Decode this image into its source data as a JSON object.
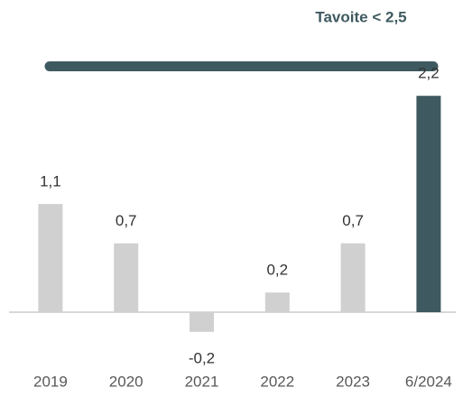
{
  "chart_data": {
    "type": "bar",
    "target": {
      "label": "Tavoite  < 2,5",
      "value": 2.5,
      "color": "#3e5a60"
    },
    "categories": [
      "2019",
      "2020",
      "2021",
      "2022",
      "2023",
      "6/2024"
    ],
    "values": [
      1.1,
      0.7,
      -0.2,
      0.2,
      0.7,
      2.2
    ],
    "value_labels": [
      "1,1",
      "0,7",
      "-0,2",
      "0,2",
      "0,7",
      "2,2"
    ],
    "colors": [
      "#d0d0d0",
      "#d0d0d0",
      "#d0d0d0",
      "#d0d0d0",
      "#d0d0d0",
      "#3e5a60"
    ],
    "ylim": [
      -0.5,
      2.6
    ]
  }
}
